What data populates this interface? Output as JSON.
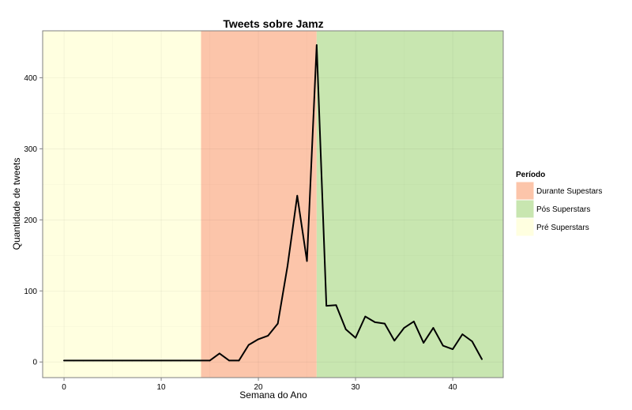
{
  "chart_data": {
    "type": "line",
    "title": "Tweets sobre Jamz",
    "xlabel": "Semana do Ano",
    "ylabel": "Quantidade de tweets",
    "xlim": [
      -2.2,
      45.2
    ],
    "ylim": [
      -22,
      466
    ],
    "x_ticks": [
      0,
      10,
      20,
      30,
      40
    ],
    "y_ticks": [
      0,
      100,
      200,
      300,
      400
    ],
    "grid": true,
    "legend_position": "right",
    "legend": {
      "title": "Período",
      "entries": [
        {
          "label": "Durante Supestars",
          "color": "#fcc5aa"
        },
        {
          "label": "Pós Superstars",
          "color": "#c8e6b0"
        },
        {
          "label": "Pré Superstars",
          "color": "#ffffe0"
        }
      ]
    },
    "periods": [
      {
        "label": "Pré Superstars",
        "x_start": -2.2,
        "x_end": 14.1,
        "color": "#ffffe0"
      },
      {
        "label": "Durante Supestars",
        "x_start": 14.1,
        "x_end": 26,
        "color": "#fcc5aa"
      },
      {
        "label": "Pós Superstars",
        "x_start": 26,
        "x_end": 45.2,
        "color": "#c8e6b0"
      }
    ],
    "series": [
      {
        "color": "#000000",
        "x": [
          0,
          1,
          2,
          3,
          4,
          5,
          6,
          7,
          8,
          9,
          10,
          11,
          12,
          13,
          14,
          15,
          16,
          17,
          18,
          19,
          20,
          21,
          22,
          23,
          24,
          25,
          26,
          27,
          28,
          29,
          30,
          31,
          32,
          33,
          34,
          35,
          36,
          37,
          38,
          39,
          40,
          41,
          42,
          43
        ],
        "y": [
          2,
          2,
          2,
          2,
          2,
          2,
          2,
          2,
          2,
          2,
          2,
          2,
          2,
          2,
          2,
          2,
          12,
          2,
          2,
          24,
          32,
          37,
          54,
          135,
          234,
          142,
          446,
          79,
          80,
          46,
          34,
          64,
          56,
          54,
          30,
          48,
          57,
          27,
          48,
          23,
          18,
          39,
          29,
          4
        ]
      }
    ]
  }
}
